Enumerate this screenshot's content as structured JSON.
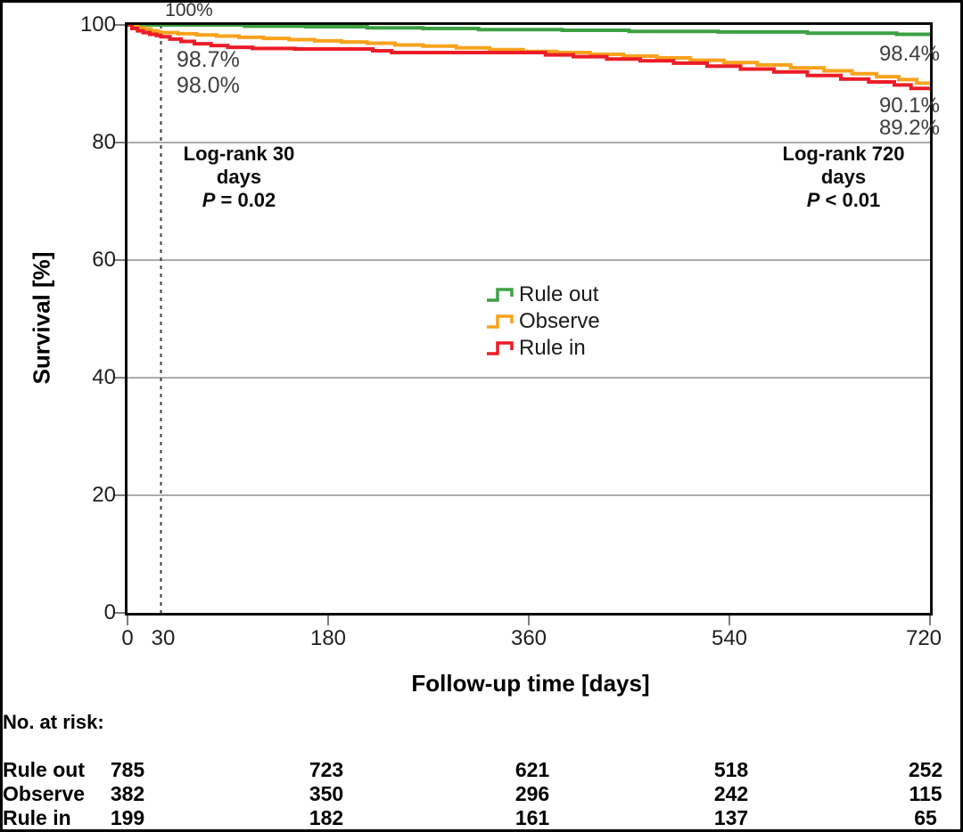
{
  "colors": {
    "rule_out": "#3ca142",
    "observe": "#f9a21c",
    "rule_in": "#ec1c27",
    "grid": "#8f8f8f",
    "dashed": "#3f3f3f",
    "tick": "#7d7d7d"
  },
  "chart_data": {
    "type": "line",
    "subtype": "kaplan-meier-step",
    "title": "",
    "xlabel": "Follow-up time [days]",
    "ylabel": "Survival [%]",
    "xlim": [
      0,
      720
    ],
    "ylim": [
      0,
      100
    ],
    "x_ticks": [
      0,
      30,
      180,
      360,
      540,
      720
    ],
    "x_tick_marks": [
      0,
      180,
      360,
      540,
      720
    ],
    "y_ticks": [
      0,
      20,
      40,
      60,
      80,
      100
    ],
    "grid_y_values": [
      20,
      40,
      60,
      80
    ],
    "grid": "horizontal-only",
    "dashed_vline_x": 30,
    "legend_position": "center",
    "series": [
      {
        "name": "Rule out",
        "color": "#3ca142",
        "points": [
          [
            0,
            100
          ],
          [
            105,
            99.8
          ],
          [
            160,
            99.7
          ],
          [
            215,
            99.5
          ],
          [
            265,
            99.4
          ],
          [
            315,
            99.2
          ],
          [
            390,
            99.1
          ],
          [
            450,
            98.9
          ],
          [
            530,
            98.8
          ],
          [
            610,
            98.6
          ],
          [
            690,
            98.4
          ],
          [
            720,
            98.4
          ]
        ]
      },
      {
        "name": "Observe",
        "color": "#f9a21c",
        "points": [
          [
            0,
            100
          ],
          [
            4,
            99.7
          ],
          [
            9,
            99.5
          ],
          [
            15,
            99.3
          ],
          [
            21,
            99.0
          ],
          [
            27,
            98.8
          ],
          [
            30,
            98.7
          ],
          [
            45,
            98.5
          ],
          [
            62,
            98.3
          ],
          [
            80,
            98.1
          ],
          [
            100,
            97.9
          ],
          [
            122,
            97.7
          ],
          [
            145,
            97.5
          ],
          [
            168,
            97.3
          ],
          [
            192,
            97.1
          ],
          [
            215,
            96.9
          ],
          [
            240,
            96.6
          ],
          [
            265,
            96.4
          ],
          [
            295,
            96.1
          ],
          [
            325,
            95.8
          ],
          [
            355,
            95.5
          ],
          [
            385,
            95.3
          ],
          [
            415,
            95.0
          ],
          [
            445,
            94.7
          ],
          [
            475,
            94.4
          ],
          [
            505,
            94.0
          ],
          [
            535,
            93.6
          ],
          [
            565,
            93.2
          ],
          [
            595,
            92.7
          ],
          [
            625,
            92.2
          ],
          [
            650,
            91.7
          ],
          [
            672,
            91.2
          ],
          [
            692,
            90.7
          ],
          [
            708,
            90.1
          ],
          [
            720,
            90.1
          ]
        ]
      },
      {
        "name": "Rule in",
        "color": "#ec1c27",
        "points": [
          [
            0,
            100
          ],
          [
            4,
            99.4
          ],
          [
            9,
            99.0
          ],
          [
            14,
            98.7
          ],
          [
            20,
            98.4
          ],
          [
            26,
            98.2
          ],
          [
            30,
            98.0
          ],
          [
            38,
            97.6
          ],
          [
            48,
            97.2
          ],
          [
            60,
            96.8
          ],
          [
            75,
            96.5
          ],
          [
            90,
            96.2
          ],
          [
            112,
            96.0
          ],
          [
            150,
            95.9
          ],
          [
            220,
            95.6
          ],
          [
            237,
            95.3
          ],
          [
            375,
            94.9
          ],
          [
            400,
            94.6
          ],
          [
            430,
            94.2
          ],
          [
            460,
            93.9
          ],
          [
            490,
            93.5
          ],
          [
            520,
            93.0
          ],
          [
            550,
            92.5
          ],
          [
            580,
            92.0
          ],
          [
            610,
            91.4
          ],
          [
            640,
            90.8
          ],
          [
            665,
            90.3
          ],
          [
            688,
            89.8
          ],
          [
            703,
            89.2
          ],
          [
            720,
            89.2
          ]
        ]
      }
    ],
    "annotations": {
      "t0": "100%",
      "d30_observe": "98.7%",
      "d30_rulein": "98.0%",
      "end_ruleout": "98.4%",
      "end_observe": "90.1%",
      "end_rulein": "89.2%"
    },
    "stats": {
      "left": {
        "title": "Log-rank 30 days",
        "p_symbol": "P",
        "p_rest": " = 0.02"
      },
      "right": {
        "title": "Log-rank 720 days",
        "p_symbol": "P",
        "p_rest": " < 0.01"
      }
    }
  },
  "legend": {
    "items": [
      {
        "label": "Rule out",
        "color": "#3ca142"
      },
      {
        "label": "Observe",
        "color": "#f9a21c"
      },
      {
        "label": "Rule in",
        "color": "#ec1c27"
      }
    ]
  },
  "risk_table": {
    "title": "No. at risk:",
    "timepoints": [
      0,
      180,
      360,
      540,
      720
    ],
    "rows": [
      {
        "label": "Rule out",
        "values": [
          785,
          723,
          621,
          518,
          252
        ]
      },
      {
        "label": "Observe",
        "values": [
          382,
          350,
          296,
          242,
          115
        ]
      },
      {
        "label": "Rule in",
        "values": [
          199,
          182,
          161,
          137,
          65
        ]
      }
    ]
  }
}
